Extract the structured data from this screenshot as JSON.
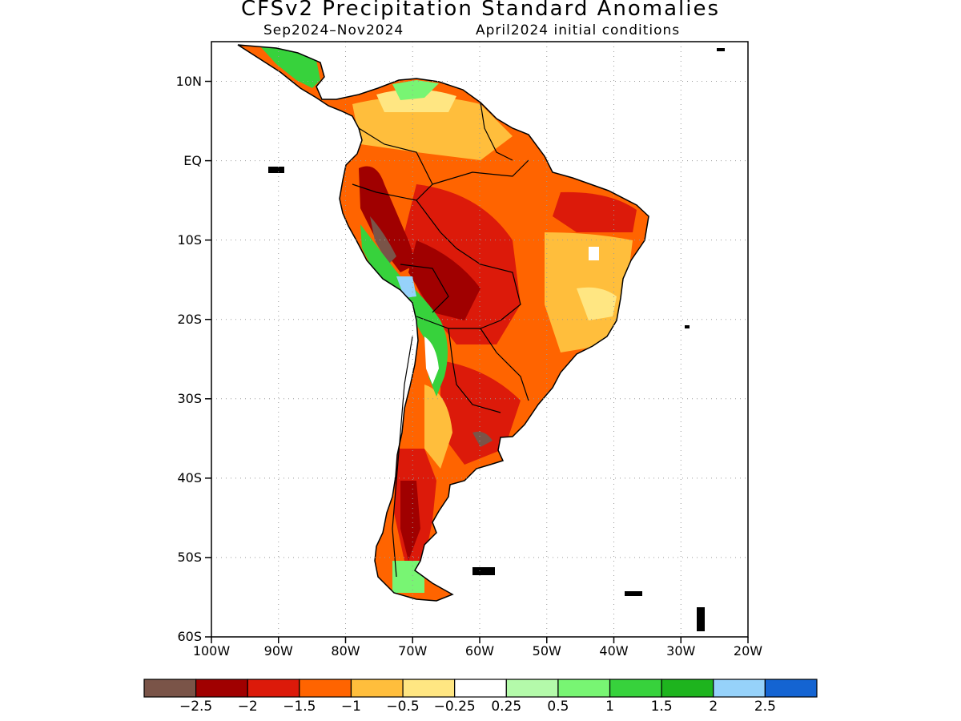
{
  "title": "CFSv2 Precipitation Standard Anomalies",
  "subtitle_period": "Sep2024–Nov2024",
  "subtitle_init": "April2024 initial conditions",
  "map": {
    "lon_range": [
      -100,
      -20
    ],
    "lat_range": [
      -60,
      15
    ],
    "lat_ticks": [
      {
        "value": 10,
        "label": "10N"
      },
      {
        "value": 0,
        "label": "EQ"
      },
      {
        "value": -10,
        "label": "10S"
      },
      {
        "value": -20,
        "label": "20S"
      },
      {
        "value": -30,
        "label": "30S"
      },
      {
        "value": -40,
        "label": "40S"
      },
      {
        "value": -50,
        "label": "50S"
      },
      {
        "value": -60,
        "label": "60S"
      }
    ],
    "lon_ticks": [
      {
        "value": -100,
        "label": "100W"
      },
      {
        "value": -90,
        "label": "90W"
      },
      {
        "value": -80,
        "label": "80W"
      },
      {
        "value": -70,
        "label": "70W"
      },
      {
        "value": -60,
        "label": "60W"
      },
      {
        "value": -50,
        "label": "50W"
      },
      {
        "value": -40,
        "label": "40W"
      },
      {
        "value": -30,
        "label": "30W"
      },
      {
        "value": -20,
        "label": "20W"
      }
    ],
    "gridlines": "dotted"
  },
  "colorbar": {
    "colors": [
      "#7a5448",
      "#a00000",
      "#dc1a0a",
      "#ff6400",
      "#ffbe3c",
      "#ffe682",
      "#ffffff",
      "#b4faaa",
      "#78f573",
      "#37d23c",
      "#1eb41e",
      "#96d2fa",
      "#1464d2"
    ],
    "labels": [
      "−2.5",
      "−2",
      "−1.5",
      "−1",
      "−0.5",
      "−0.25",
      "0.25",
      "0.5",
      "1",
      "1.5",
      "2",
      "2.5"
    ]
  },
  "colors": {
    "land_outline": "#000000",
    "ocean": "#ffffff",
    "grid": "#9a9a9a"
  }
}
